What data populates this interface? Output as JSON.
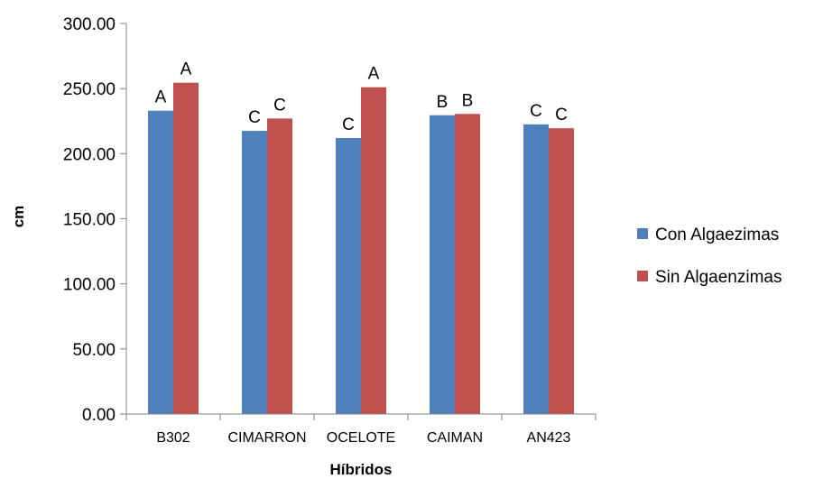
{
  "chart_data": {
    "type": "bar",
    "title": "",
    "xlabel": "Híbridos",
    "ylabel": "cm",
    "ylim": [
      0,
      300
    ],
    "yticks": [
      "0.00",
      "50.00",
      "100.00",
      "150.00",
      "200.00",
      "250.00",
      "300.00"
    ],
    "categories": [
      "B302",
      "CIMARRON",
      "OCELOTE",
      "CAIMAN",
      "AN423"
    ],
    "series": [
      {
        "name": "Con Algaezimas",
        "color": "#4F81BD",
        "values": [
          233,
          217.5,
          212,
          229.5,
          222.5
        ],
        "labels": [
          "A",
          "C",
          "C",
          "B",
          "C"
        ]
      },
      {
        "name": "Sin Algaenzimas",
        "color": "#C0504D",
        "values": [
          254.5,
          227,
          251,
          230.5,
          219.5
        ],
        "labels": [
          "A",
          "C",
          "A",
          "B",
          "C"
        ]
      }
    ],
    "grid": false,
    "legend_position": "right"
  }
}
